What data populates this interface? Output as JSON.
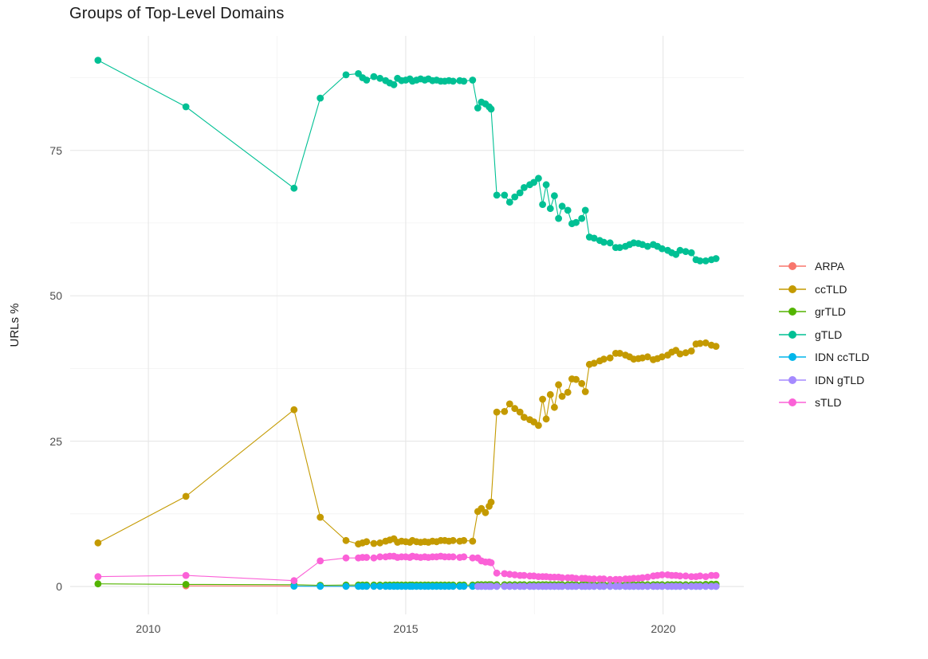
{
  "chart_data": {
    "type": "line",
    "title": "Groups of Top-Level Domains",
    "xlabel": "",
    "ylabel": "URLs %",
    "grid": {
      "major_color": "#e8e8e8",
      "minor_color": "#f2f2f2",
      "background": "#ffffff"
    },
    "text_colors": {
      "title": "#1a1a1a",
      "ticks": "#4d4d4d",
      "legend": "#1a1a1a"
    },
    "legend_position": "right",
    "x_domain": [
      2008.48,
      2021.57
    ],
    "y_domain": [
      -4.8,
      94.7
    ],
    "x_ticks": [
      {
        "value": 2010,
        "label": "2010"
      },
      {
        "value": 2015,
        "label": "2015"
      },
      {
        "value": 2020,
        "label": "2020"
      }
    ],
    "x_minor": [
      2012.5,
      2017.5
    ],
    "y_ticks": [
      {
        "value": 0,
        "label": "0"
      },
      {
        "value": 25,
        "label": "25"
      },
      {
        "value": 50,
        "label": "50"
      },
      {
        "value": 75,
        "label": "75"
      }
    ],
    "y_minor": [
      12.5,
      37.5,
      62.5,
      87.5
    ],
    "x": [
      2009.02,
      2010.73,
      2012.83,
      2013.34,
      2013.84,
      2014.08,
      2014.16,
      2014.24,
      2014.38,
      2014.5,
      2014.61,
      2014.69,
      2014.77,
      2014.84,
      2014.92,
      2015.0,
      2015.08,
      2015.13,
      2015.21,
      2015.29,
      2015.37,
      2015.44,
      2015.52,
      2015.6,
      2015.68,
      2015.76,
      2015.84,
      2015.92,
      2016.05,
      2016.13,
      2016.3,
      2016.4,
      2016.47,
      2016.55,
      2016.62,
      2016.66,
      2016.77,
      2016.92,
      2017.02,
      2017.12,
      2017.22,
      2017.3,
      2017.41,
      2017.49,
      2017.58,
      2017.66,
      2017.73,
      2017.81,
      2017.89,
      2017.97,
      2018.04,
      2018.15,
      2018.23,
      2018.31,
      2018.42,
      2018.49,
      2018.57,
      2018.66,
      2018.77,
      2018.85,
      2018.97,
      2019.08,
      2019.16,
      2019.27,
      2019.35,
      2019.43,
      2019.52,
      2019.6,
      2019.7,
      2019.81,
      2019.89,
      2019.98,
      2020.09,
      2020.17,
      2020.25,
      2020.33,
      2020.44,
      2020.55,
      2020.64,
      2020.72,
      2020.83,
      2020.94,
      2021.03
    ],
    "series": [
      {
        "name": "ARPA",
        "color": "#F8766D",
        "values": [
          null,
          0.1,
          0.08,
          0.06,
          0.05,
          0.05,
          0.05,
          0.05,
          0.05,
          0.05,
          0.05,
          0.05,
          0.05,
          0.05,
          0.05,
          0.05,
          0.05,
          0.05,
          0.05,
          0.05,
          0.05,
          0.05,
          0.05,
          0.05,
          0.05,
          0.05,
          0.05,
          0.05,
          0.05,
          0.05,
          0.05,
          0.05,
          0.05,
          0.05,
          0.05,
          0.05,
          0.05,
          0.05,
          0.05,
          0.05,
          0.05,
          0.05,
          0.05,
          0.05,
          0.05,
          0.05,
          0.05,
          0.05,
          0.05,
          0.05,
          0.05,
          0.05,
          0.05,
          0.05,
          0.05,
          0.05,
          0.05,
          0.05,
          0.05,
          0.05,
          0.05,
          0.05,
          0.05,
          0.05,
          0.05,
          0.05,
          0.05,
          0.05,
          0.05,
          0.05,
          0.05,
          0.05,
          0.05,
          0.05,
          0.05,
          0.05,
          0.05,
          0.05,
          0.05,
          0.05,
          0.05,
          0.05,
          0.05
        ]
      },
      {
        "name": "ccTLD",
        "color": "#C49A00",
        "values": [
          7.5,
          15.5,
          30.4,
          11.9,
          7.9,
          7.3,
          7.5,
          7.7,
          7.4,
          7.5,
          7.8,
          8.0,
          8.2,
          7.6,
          7.8,
          7.7,
          7.6,
          7.9,
          7.7,
          7.6,
          7.7,
          7.6,
          7.8,
          7.7,
          7.9,
          7.9,
          7.8,
          7.9,
          7.8,
          7.9,
          7.8,
          12.9,
          13.4,
          12.7,
          13.8,
          14.5,
          30.0,
          30.1,
          31.4,
          30.6,
          30.0,
          29.1,
          28.7,
          28.3,
          27.7,
          32.2,
          28.8,
          33.0,
          30.8,
          34.7,
          32.7,
          33.4,
          35.7,
          35.6,
          34.9,
          33.5,
          38.2,
          38.4,
          38.8,
          39.1,
          39.3,
          40.1,
          40.1,
          39.8,
          39.5,
          39.1,
          39.2,
          39.3,
          39.5,
          39.0,
          39.2,
          39.5,
          39.8,
          40.3,
          40.6,
          40.0,
          40.2,
          40.5,
          41.7,
          41.8,
          41.9,
          41.5,
          41.3
        ]
      },
      {
        "name": "grTLD",
        "color": "#53B400",
        "values": [
          0.45,
          0.35,
          0.3,
          0.2,
          0.25,
          0.25,
          0.25,
          0.25,
          0.25,
          0.25,
          0.25,
          0.25,
          0.25,
          0.25,
          0.25,
          0.25,
          0.25,
          0.25,
          0.25,
          0.25,
          0.25,
          0.25,
          0.25,
          0.25,
          0.25,
          0.25,
          0.25,
          0.25,
          0.25,
          0.25,
          0.25,
          0.3,
          0.3,
          0.3,
          0.3,
          0.3,
          0.3,
          0.3,
          0.3,
          0.3,
          0.3,
          0.3,
          0.3,
          0.3,
          0.3,
          0.3,
          0.3,
          0.3,
          0.3,
          0.3,
          0.3,
          0.3,
          0.3,
          0.3,
          0.3,
          0.3,
          0.3,
          0.3,
          0.3,
          0.3,
          0.3,
          0.3,
          0.3,
          0.3,
          0.3,
          0.3,
          0.3,
          0.3,
          0.3,
          0.3,
          0.3,
          0.3,
          0.3,
          0.3,
          0.3,
          0.3,
          0.3,
          0.3,
          0.3,
          0.3,
          0.35,
          0.4,
          0.4
        ]
      },
      {
        "name": "gTLD",
        "color": "#00C094",
        "values": [
          90.5,
          82.5,
          68.5,
          84.0,
          88.0,
          88.2,
          87.5,
          87.1,
          87.7,
          87.4,
          87.0,
          86.6,
          86.3,
          87.4,
          87.0,
          87.1,
          87.3,
          86.9,
          87.1,
          87.3,
          87.1,
          87.3,
          87.0,
          87.1,
          86.9,
          86.9,
          87.0,
          86.9,
          87.0,
          86.9,
          87.1,
          82.3,
          83.3,
          83.0,
          82.5,
          82.1,
          67.3,
          67.3,
          66.1,
          67.0,
          67.7,
          68.6,
          69.1,
          69.5,
          70.2,
          65.7,
          69.1,
          65.0,
          67.2,
          63.3,
          65.4,
          64.7,
          62.4,
          62.6,
          63.3,
          64.7,
          60.1,
          59.9,
          59.5,
          59.2,
          59.1,
          58.3,
          58.3,
          58.5,
          58.8,
          59.1,
          59.0,
          58.8,
          58.5,
          58.8,
          58.5,
          58.1,
          57.8,
          57.4,
          57.1,
          57.8,
          57.6,
          57.4,
          56.2,
          56.0,
          56.0,
          56.2,
          56.4
        ]
      },
      {
        "name": "IDN ccTLD",
        "color": "#00B6EB",
        "values": [
          null,
          null,
          0.05,
          0.03,
          0.03,
          0.03,
          0.03,
          0.03,
          0.03,
          0.03,
          0.03,
          0.03,
          0.03,
          0.03,
          0.03,
          0.03,
          0.03,
          0.03,
          0.03,
          0.03,
          0.03,
          0.03,
          0.03,
          0.03,
          0.03,
          0.03,
          0.03,
          0.03,
          0.03,
          0.03,
          0.03,
          0.03,
          0.03,
          0.03,
          0.03,
          0.03,
          0.03,
          0.03,
          0.03,
          0.03,
          0.03,
          0.03,
          0.03,
          0.03,
          0.03,
          0.03,
          0.03,
          0.03,
          0.03,
          0.03,
          0.03,
          0.03,
          0.03,
          0.03,
          0.03,
          0.03,
          0.03,
          0.03,
          0.03,
          0.03,
          0.03,
          0.03,
          0.03,
          0.03,
          0.03,
          0.03,
          0.03,
          0.03,
          0.03,
          0.03,
          0.03,
          0.03,
          0.03,
          0.03,
          0.03,
          0.03,
          0.03,
          0.03,
          0.03,
          0.03,
          0.03,
          0.03,
          0.03
        ]
      },
      {
        "name": "IDN gTLD",
        "color": "#A58AFF",
        "values": [
          null,
          null,
          null,
          null,
          null,
          null,
          null,
          null,
          null,
          null,
          null,
          null,
          null,
          null,
          null,
          null,
          null,
          null,
          null,
          null,
          null,
          null,
          null,
          null,
          null,
          null,
          null,
          null,
          null,
          null,
          null,
          0.02,
          0.02,
          0.02,
          0.02,
          0.02,
          0.02,
          0.02,
          0.02,
          0.02,
          0.02,
          0.02,
          0.02,
          0.02,
          0.02,
          0.02,
          0.02,
          0.02,
          0.02,
          0.02,
          0.02,
          0.02,
          0.02,
          0.02,
          0.02,
          0.02,
          0.02,
          0.02,
          0.02,
          0.02,
          0.02,
          0.02,
          0.02,
          0.02,
          0.02,
          0.02,
          0.02,
          0.02,
          0.02,
          0.02,
          0.02,
          0.02,
          0.02,
          0.02,
          0.02,
          0.02,
          0.02,
          0.02,
          0.02,
          0.02,
          0.02,
          0.02,
          0.02
        ]
      },
      {
        "name": "sTLD",
        "color": "#FB61D7",
        "values": [
          1.7,
          1.9,
          1.0,
          4.4,
          4.9,
          4.9,
          5.0,
          5.0,
          4.9,
          5.1,
          5.1,
          5.2,
          5.2,
          5.0,
          5.1,
          5.1,
          5.0,
          5.2,
          5.1,
          5.0,
          5.1,
          5.0,
          5.1,
          5.1,
          5.2,
          5.1,
          5.1,
          5.1,
          5.0,
          5.1,
          4.9,
          4.9,
          4.4,
          4.2,
          4.2,
          4.1,
          2.3,
          2.2,
          2.1,
          2.0,
          1.9,
          1.9,
          1.8,
          1.8,
          1.7,
          1.7,
          1.7,
          1.6,
          1.6,
          1.6,
          1.5,
          1.5,
          1.5,
          1.4,
          1.4,
          1.4,
          1.3,
          1.3,
          1.3,
          1.3,
          1.2,
          1.2,
          1.2,
          1.3,
          1.3,
          1.4,
          1.4,
          1.5,
          1.6,
          1.8,
          1.9,
          2.0,
          2.0,
          1.9,
          1.9,
          1.8,
          1.8,
          1.7,
          1.7,
          1.8,
          1.7,
          1.9,
          1.9
        ]
      }
    ]
  }
}
